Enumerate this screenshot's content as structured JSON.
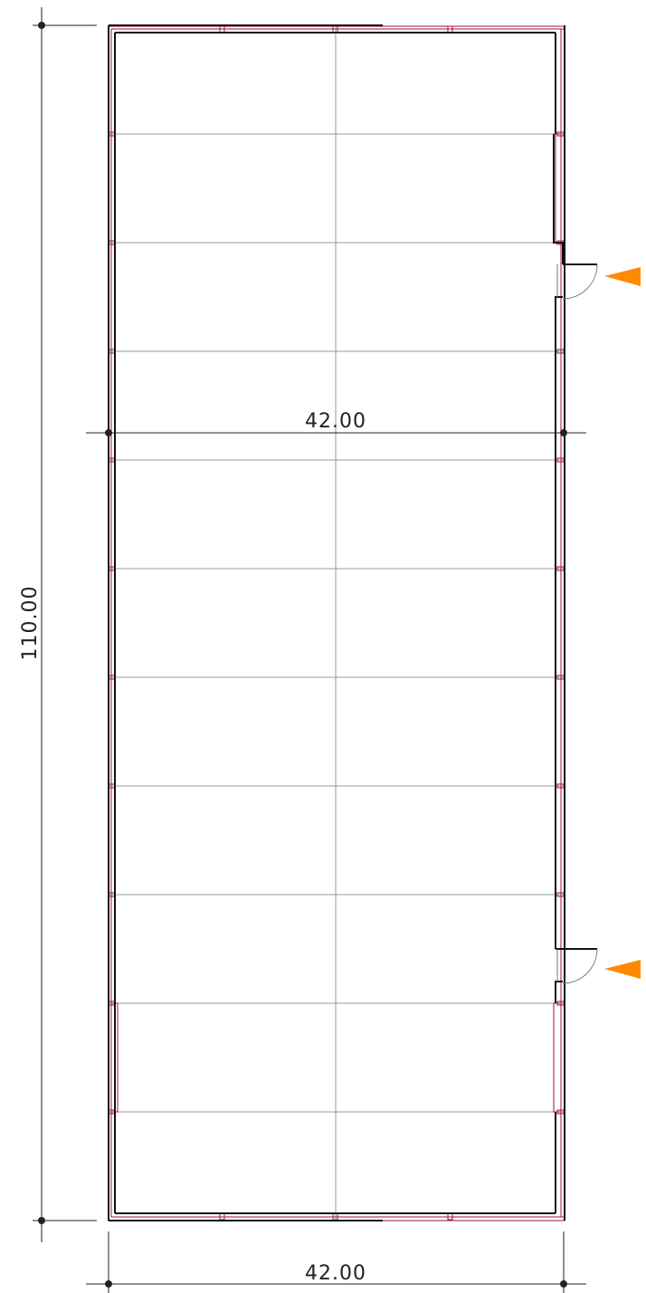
{
  "drawing": {
    "width_dimension_label": "42.00",
    "bottom_dimension_label": "42.00",
    "length_dimension_label": "110.00"
  },
  "colors": {
    "wall": "#111111",
    "grid": "#9a9a9a",
    "frame": "#a0123a",
    "entry_marker": "#ff8a00",
    "dimension": "#222222"
  },
  "entries": [
    {
      "name": "entry-door-upper"
    },
    {
      "name": "entry-door-lower"
    }
  ]
}
